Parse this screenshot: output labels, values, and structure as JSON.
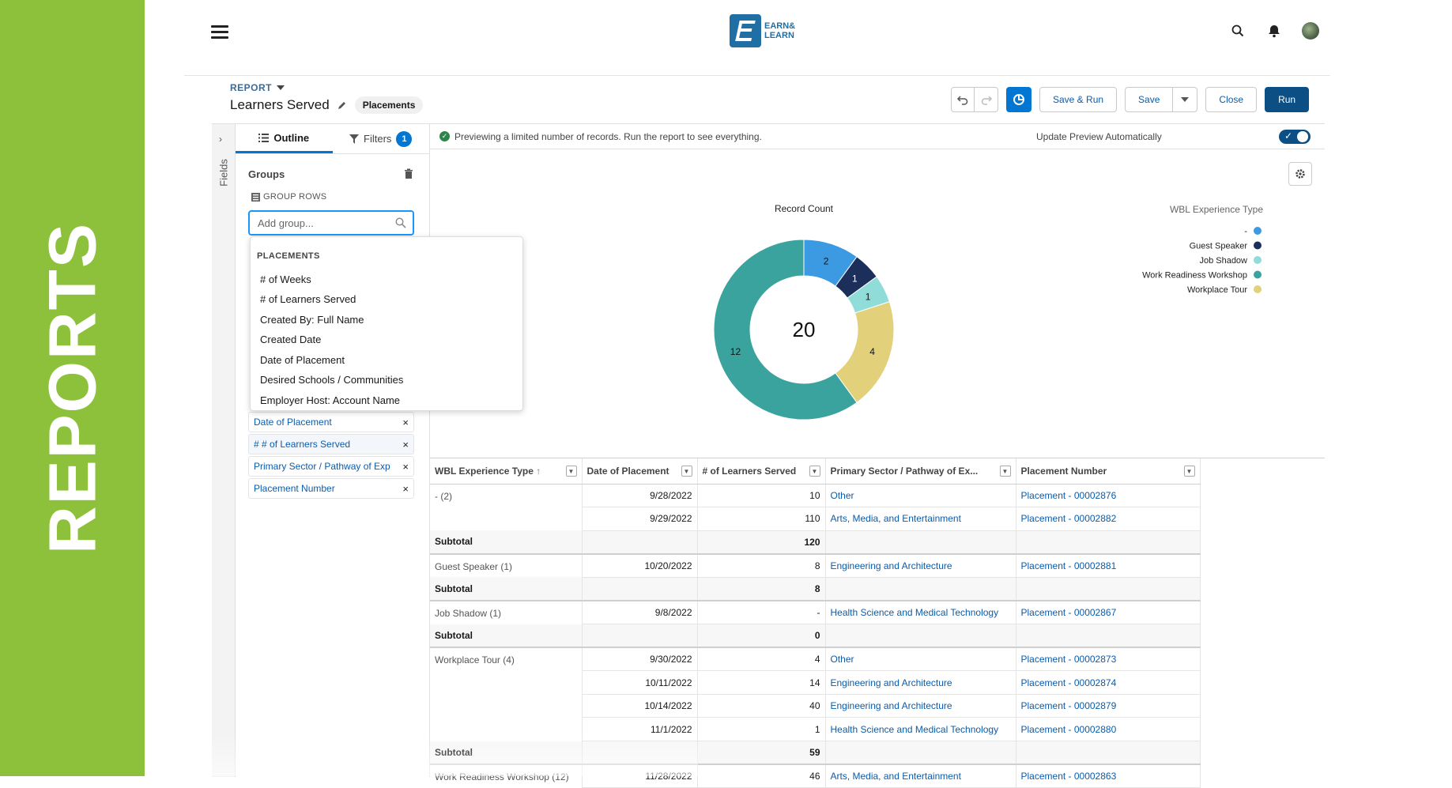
{
  "banner": {
    "text": "REPORTS",
    "bg_color": "#8dc13c"
  },
  "logo": {
    "line1": "EARN&",
    "line2": "LEARN",
    "color": "#1f6fa5"
  },
  "report": {
    "label": "REPORT",
    "title": "Learners Served",
    "object_pill": "Placements"
  },
  "actions": {
    "save_run": "Save & Run",
    "save": "Save",
    "close": "Close",
    "run": "Run"
  },
  "fields_rail": {
    "label": "Fields"
  },
  "tabs": {
    "outline": "Outline",
    "filters": "Filters",
    "filters_count": "1"
  },
  "groups": {
    "heading": "Groups",
    "group_rows_label": "GROUP ROWS",
    "add_group_placeholder": "Add group..."
  },
  "dropdown": {
    "heading": "PLACEMENTS",
    "items": [
      "# of Weeks",
      "# of Learners Served",
      "Created By: Full Name",
      "Created Date",
      "Date of Placement",
      "Desired Schools / Communities",
      "Employer Host: Account Name"
    ]
  },
  "columns_list": [
    "Date of Placement",
    "# # of Learners Served",
    "Primary Sector / Pathway of Exp",
    "Placement Number"
  ],
  "preview": {
    "info": "Previewing a limited number of records. Run the report to see everything.",
    "update_label": "Update Preview Automatically"
  },
  "chart_data": {
    "type": "pie",
    "title": "Record Count",
    "center_total": "20",
    "legend_title": "WBL Experience Type",
    "legend_position": "top-right",
    "slices": [
      {
        "name": "-",
        "value": 2,
        "color": "#3b9ae1"
      },
      {
        "name": "Guest Speaker",
        "value": 1,
        "color": "#1c2e5a"
      },
      {
        "name": "Job Shadow",
        "value": 1,
        "color": "#8fdcd9"
      },
      {
        "name": "Workplace Tour",
        "value": 4,
        "color": "#e2d07a"
      },
      {
        "name": "Work Readiness Workshop",
        "value": 12,
        "color": "#3ba39d"
      }
    ],
    "legend_order": [
      "-",
      "Guest Speaker",
      "Job Shadow",
      "Work Readiness Workshop",
      "Workplace Tour"
    ]
  },
  "table": {
    "headers": [
      "WBL Experience Type",
      "Date of Placement",
      "# of Learners Served",
      "Primary Sector / Pathway of Ex...",
      "Placement Number"
    ],
    "subtotal_label": "Subtotal",
    "groups": [
      {
        "label": "- (2)",
        "rows": [
          {
            "date": "9/28/2022",
            "learners": "10",
            "sector": "Other",
            "placement": "Placement - 00002876"
          },
          {
            "date": "9/29/2022",
            "learners": "110",
            "sector": "Arts, Media, and Entertainment",
            "placement": "Placement - 00002882"
          }
        ],
        "subtotal": "120"
      },
      {
        "label": "Guest Speaker (1)",
        "rows": [
          {
            "date": "10/20/2022",
            "learners": "8",
            "sector": "Engineering and Architecture",
            "placement": "Placement - 00002881"
          }
        ],
        "subtotal": "8"
      },
      {
        "label": "Job Shadow (1)",
        "rows": [
          {
            "date": "9/8/2022",
            "learners": "-",
            "sector": "Health Science and Medical Technology",
            "placement": "Placement - 00002867"
          }
        ],
        "subtotal": "0"
      },
      {
        "label": "Workplace Tour (4)",
        "rows": [
          {
            "date": "9/30/2022",
            "learners": "4",
            "sector": "Other",
            "placement": "Placement - 00002873"
          },
          {
            "date": "10/11/2022",
            "learners": "14",
            "sector": "Engineering and Architecture",
            "placement": "Placement - 00002874"
          },
          {
            "date": "10/14/2022",
            "learners": "40",
            "sector": "Engineering and Architecture",
            "placement": "Placement - 00002879"
          },
          {
            "date": "11/1/2022",
            "learners": "1",
            "sector": "Health Science and Medical Technology",
            "placement": "Placement - 00002880"
          }
        ],
        "subtotal": "59"
      },
      {
        "label": "Work Readiness Workshop (12)",
        "rows": [
          {
            "date": "11/28/2022",
            "learners": "46",
            "sector": "Arts, Media, and Entertainment",
            "placement": "Placement - 00002863"
          }
        ],
        "subtotal": null
      }
    ]
  }
}
